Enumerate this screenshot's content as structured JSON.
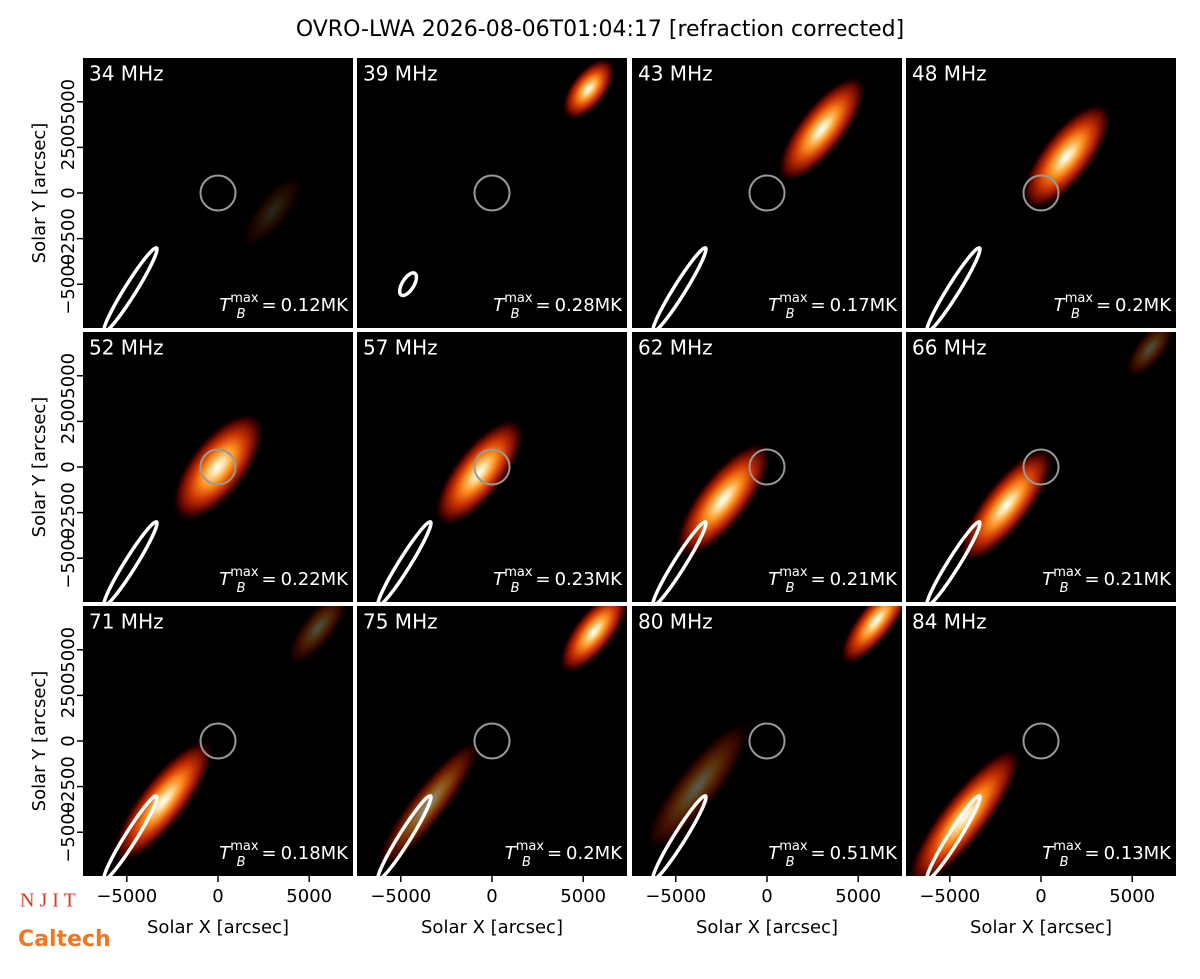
{
  "title": "OVRO-LWA 2026-08-06T01:04:17 [refraction corrected]",
  "xlabel": "Solar X [arcsec]",
  "ylabel": "Solar Y [arcsec]",
  "axes": {
    "xlim": [
      -7400,
      7400
    ],
    "ylim": [
      -7400,
      7400
    ],
    "xticks": [
      {
        "value": -5000,
        "label": "−5000"
      },
      0,
      5000
    ],
    "yticks": [
      {
        "value": -5000,
        "label": "−5000"
      },
      {
        "value": -2500,
        "label": "−2500"
      },
      0,
      2500,
      5000
    ]
  },
  "tb_symbol": {
    "base": "T",
    "sub": "B",
    "sup": "max",
    "eq": "="
  },
  "panels": [
    {
      "freq": "34 MHz",
      "tb": "0.12MK"
    },
    {
      "freq": "39 MHz",
      "tb": "0.28MK"
    },
    {
      "freq": "43 MHz",
      "tb": "0.17MK"
    },
    {
      "freq": "48 MHz",
      "tb": "0.2MK"
    },
    {
      "freq": "52 MHz",
      "tb": "0.22MK"
    },
    {
      "freq": "57 MHz",
      "tb": "0.23MK"
    },
    {
      "freq": "62 MHz",
      "tb": "0.21MK"
    },
    {
      "freq": "66 MHz",
      "tb": "0.21MK"
    },
    {
      "freq": "71 MHz",
      "tb": "0.18MK"
    },
    {
      "freq": "75 MHz",
      "tb": "0.2MK"
    },
    {
      "freq": "80 MHz",
      "tb": "0.51MK"
    },
    {
      "freq": "84 MHz",
      "tb": "0.13MK"
    }
  ],
  "logos": {
    "njit": "N J I T",
    "caltech": "Caltech"
  }
}
